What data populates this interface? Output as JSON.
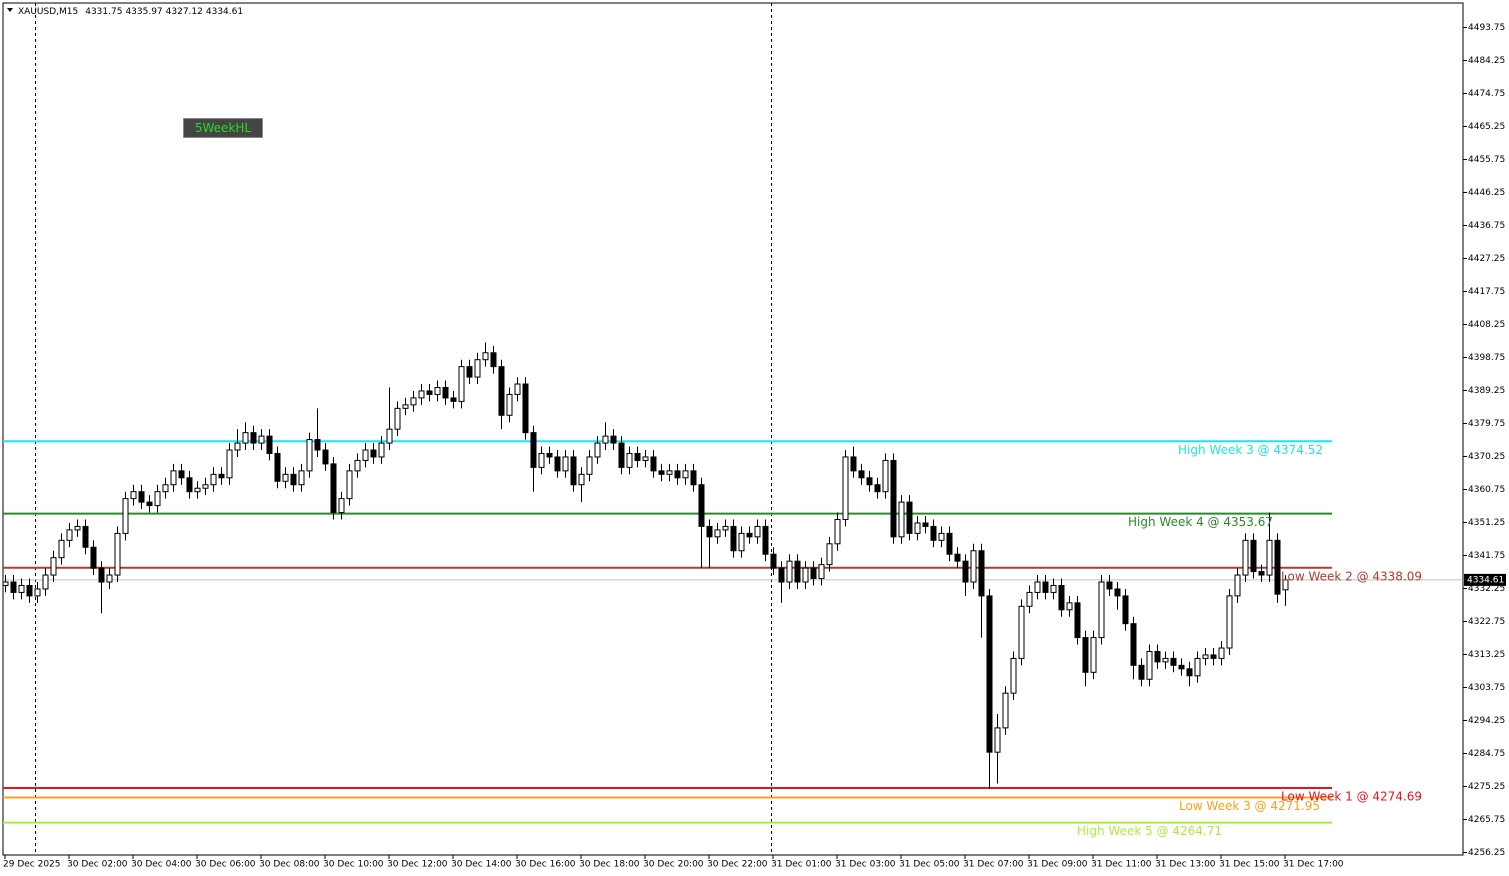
{
  "chart_data": {
    "type": "candlestick",
    "symbol": "XAUUSD,M15",
    "button": "5WeekHL",
    "categories": [
      "29 Dec 2025",
      null,
      null,
      null,
      null,
      null,
      null,
      null,
      "30 Dec 02:00",
      null,
      null,
      null,
      null,
      null,
      null,
      null,
      "30 Dec 04:00",
      null,
      null,
      null,
      null,
      null,
      null,
      null,
      "30 Dec 06:00",
      null,
      null,
      null,
      null,
      null,
      null,
      null,
      "30 Dec 08:00",
      null,
      null,
      null,
      null,
      null,
      null,
      null,
      "30 Dec 10:00",
      null,
      null,
      null,
      null,
      null,
      null,
      null,
      "30 Dec 12:00",
      null,
      null,
      null,
      null,
      null,
      null,
      null,
      "30 Dec 14:00",
      null,
      null,
      null,
      null,
      null,
      null,
      null,
      "30 Dec 16:00",
      null,
      null,
      null,
      null,
      null,
      null,
      null,
      "30 Dec 18:00",
      null,
      null,
      null,
      null,
      null,
      null,
      null,
      "30 Dec 20:00",
      null,
      null,
      null,
      null,
      null,
      null,
      null,
      "30 Dec 22:00",
      null,
      null,
      null,
      null,
      null,
      null,
      null,
      "31 Dec 01:00",
      null,
      null,
      null,
      null,
      null,
      null,
      null,
      "31 Dec 03:00",
      null,
      null,
      null,
      null,
      null,
      null,
      null,
      "31 Dec 05:00",
      null,
      null,
      null,
      null,
      null,
      null,
      null,
      "31 Dec 07:00",
      null,
      null,
      null,
      null,
      null,
      null,
      null,
      "31 Dec 09:00",
      null,
      null,
      null,
      null,
      null,
      null,
      null,
      "31 Dec 11:00",
      null,
      null,
      null,
      null,
      null,
      null,
      null,
      "31 Dec 13:00",
      null,
      null,
      null,
      null,
      null,
      null,
      null,
      "31 Dec 15:00",
      null,
      null,
      null,
      null,
      null,
      null,
      null,
      "31 Dec 17:00"
    ],
    "open": [
      4333,
      4334,
      4331,
      4333,
      4330,
      4332,
      4336,
      4341,
      4346,
      4349,
      4350,
      4344,
      4338,
      4334,
      4336,
      4348,
      4358,
      4360,
      4357,
      4356,
      4360,
      4362,
      4366,
      4364,
      4360,
      4361,
      4362,
      4365,
      4364,
      4372,
      4374,
      4377,
      4374,
      4376,
      4371,
      4363,
      4365,
      4362,
      4366,
      4375,
      4372,
      4368,
      4354,
      4358,
      4366,
      4369,
      4372,
      4370,
      4374,
      4378,
      4384,
      4385,
      4387,
      4389,
      4388,
      4390,
      4387,
      4386,
      4396,
      4393,
      4398,
      4400,
      4396,
      4382,
      4388,
      4391,
      4377,
      4367,
      4371,
      4370,
      4366,
      4370,
      4362,
      4365,
      4370,
      4374,
      4376,
      4374,
      4367,
      4371,
      4369,
      4370,
      4366,
      4365,
      4366,
      4364,
      4366,
      4362,
      4350,
      4347,
      4349,
      4350,
      4343,
      4348,
      4347,
      4350,
      4342,
      4338,
      4334,
      4340,
      4334,
      4338,
      4335,
      4339,
      4345,
      4352,
      4370,
      4366,
      4364,
      4362,
      4360,
      4369,
      4347,
      4357,
      4348,
      4351,
      4350,
      4346,
      4348,
      4342,
      4340,
      4334,
      4343,
      4330,
      4285,
      4292,
      4302,
      4312,
      4327,
      4331,
      4334,
      4331,
      4333,
      4326,
      4328,
      4318,
      4308,
      4318,
      4334,
      4332,
      4330,
      4322,
      4310,
      4306,
      4314,
      4311,
      4312,
      4310,
      4309,
      4307,
      4312,
      4313,
      4312,
      4315,
      4330,
      4336,
      4346,
      4337,
      4336,
      4346,
      4331.75
    ],
    "high": [
      4336,
      4336,
      4335,
      4335,
      4334,
      4338,
      4343,
      4348,
      4351,
      4352,
      4352,
      4346,
      4340,
      4338,
      4350,
      4360,
      4362,
      4362,
      4359,
      4362,
      4364,
      4368,
      4368,
      4366,
      4363,
      4364,
      4367,
      4367,
      4374,
      4378,
      4380,
      4379,
      4378,
      4378,
      4373,
      4367,
      4367,
      4368,
      4377,
      4384,
      4374,
      4370,
      4360,
      4368,
      4371,
      4374,
      4374,
      4376,
      4390,
      4386,
      4387,
      4389,
      4391,
      4391,
      4392,
      4392,
      4389,
      4398,
      4398,
      4400,
      4403,
      4402,
      4398,
      4390,
      4393,
      4393,
      4379,
      4373,
      4373,
      4372,
      4372,
      4372,
      4367,
      4372,
      4376,
      4380,
      4378,
      4376,
      4373,
      4373,
      4372,
      4372,
      4368,
      4368,
      4368,
      4368,
      4368,
      4364,
      4352,
      4351,
      4352,
      4352,
      4350,
      4350,
      4352,
      4352,
      4344,
      4340,
      4342,
      4342,
      4340,
      4340,
      4341,
      4347,
      4354,
      4372,
      4373,
      4368,
      4366,
      4364,
      4371,
      4371,
      4359,
      4359,
      4353,
      4353,
      4352,
      4350,
      4350,
      4344,
      4342,
      4345,
      4345,
      4332,
      4296,
      4304,
      4314,
      4329,
      4333,
      4336,
      4336,
      4335,
      4335,
      4330,
      4330,
      4320,
      4320,
      4336,
      4336,
      4334,
      4332,
      4324,
      4312,
      4316,
      4316,
      4314,
      4314,
      4312,
      4311,
      4314,
      4315,
      4315,
      4317,
      4332,
      4338,
      4348,
      4348,
      4339,
      4354,
      4348,
      4335.97
    ],
    "low": [
      4331,
      4329,
      4329,
      4328,
      4328,
      4330,
      4334,
      4339,
      4344,
      4347,
      4342,
      4336,
      4325,
      4332,
      4334,
      4346,
      4356,
      4355,
      4354,
      4354,
      4358,
      4360,
      4362,
      4358,
      4358,
      4359,
      4360,
      4362,
      4362,
      4370,
      4372,
      4372,
      4372,
      4369,
      4361,
      4361,
      4360,
      4360,
      4364,
      4370,
      4366,
      4352,
      4352,
      4356,
      4364,
      4367,
      4368,
      4368,
      4372,
      4376,
      4382,
      4383,
      4385,
      4386,
      4386,
      4385,
      4384,
      4384,
      4391,
      4391,
      4396,
      4394,
      4378,
      4380,
      4386,
      4375,
      4360,
      4365,
      4368,
      4364,
      4364,
      4360,
      4357,
      4363,
      4368,
      4372,
      4372,
      4365,
      4365,
      4367,
      4367,
      4364,
      4363,
      4363,
      4362,
      4362,
      4360,
      4338,
      4338,
      4345,
      4347,
      4341,
      4341,
      4345,
      4345,
      4340,
      4336,
      4328,
      4332,
      4332,
      4332,
      4333,
      4333,
      4337,
      4343,
      4350,
      4364,
      4362,
      4360,
      4358,
      4358,
      4345,
      4345,
      4346,
      4346,
      4348,
      4344,
      4344,
      4340,
      4338,
      4330,
      4332,
      4318,
      4274.5,
      4276,
      4290,
      4300,
      4310,
      4325,
      4329,
      4329,
      4329,
      4324,
      4324,
      4316,
      4304,
      4306,
      4316,
      4330,
      4326,
      4320,
      4306,
      4304,
      4304,
      4309,
      4309,
      4308,
      4307,
      4304,
      4305,
      4310,
      4310,
      4310,
      4313,
      4328,
      4334,
      4335,
      4334,
      4334,
      4328,
      4327.12
    ],
    "close": [
      4334,
      4331,
      4333,
      4330,
      4332,
      4336,
      4341,
      4346,
      4349,
      4350,
      4344,
      4338,
      4334,
      4336,
      4348,
      4358,
      4360,
      4357,
      4356,
      4360,
      4362,
      4366,
      4364,
      4360,
      4361,
      4362,
      4365,
      4364,
      4372,
      4374,
      4377,
      4374,
      4376,
      4371,
      4363,
      4365,
      4362,
      4366,
      4375,
      4372,
      4368,
      4354,
      4358,
      4366,
      4369,
      4372,
      4370,
      4374,
      4378,
      4384,
      4385,
      4387,
      4389,
      4388,
      4390,
      4387,
      4386,
      4396,
      4393,
      4398,
      4400,
      4396,
      4382,
      4388,
      4391,
      4377,
      4367,
      4371,
      4370,
      4366,
      4370,
      4362,
      4365,
      4370,
      4374,
      4376,
      4374,
      4367,
      4371,
      4369,
      4370,
      4366,
      4365,
      4366,
      4364,
      4366,
      4362,
      4350,
      4347,
      4349,
      4350,
      4343,
      4348,
      4347,
      4350,
      4342,
      4338,
      4334,
      4340,
      4334,
      4338,
      4335,
      4339,
      4345,
      4352,
      4370,
      4366,
      4364,
      4362,
      4360,
      4369,
      4347,
      4357,
      4348,
      4351,
      4350,
      4346,
      4348,
      4342,
      4340,
      4334,
      4343,
      4330,
      4285,
      4292,
      4302,
      4312,
      4327,
      4331,
      4334,
      4331,
      4333,
      4326,
      4328,
      4318,
      4308,
      4318,
      4334,
      4332,
      4330,
      4322,
      4310,
      4306,
      4314,
      4311,
      4312,
      4310,
      4309,
      4307,
      4312,
      4313,
      4312,
      4315,
      4330,
      4336,
      4346,
      4337,
      4336,
      4346,
      4330.5,
      4334.61
    ],
    "ylim": [
      4255.4,
      4500.7
    ],
    "yticks": [
      4493.75,
      4484.25,
      4474.75,
      4465.25,
      4455.75,
      4446.25,
      4436.75,
      4427.25,
      4417.75,
      4408.25,
      4398.75,
      4389.25,
      4379.75,
      4370.25,
      4360.75,
      4351.25,
      4341.75,
      4332.25,
      4322.75,
      4313.25,
      4303.75,
      4294.25,
      4284.75,
      4275.25,
      4265.75,
      4256.25
    ],
    "levels": [
      {
        "label": "High Week 3 @ 4374.52",
        "value": 4374.52,
        "color": "#1ee3f0"
      },
      {
        "label": "High Week 4 @ 4353.67",
        "value": 4353.67,
        "color": "#2a8a2a"
      },
      {
        "label": "Low Week 2 @ 4338.09",
        "value": 4338.09,
        "color": "#b33a30"
      },
      {
        "label": "Low Week 1 @ 4274.69",
        "value": 4274.69,
        "color": "#e8141c"
      },
      {
        "label": "Low Week 3 @ 4271.95",
        "value": 4271.95,
        "color": "#ffa01a"
      },
      {
        "label": "High Week 5 @ 4264.71",
        "value": 4264.71,
        "color": "#a6f03a"
      }
    ]
  }
}
